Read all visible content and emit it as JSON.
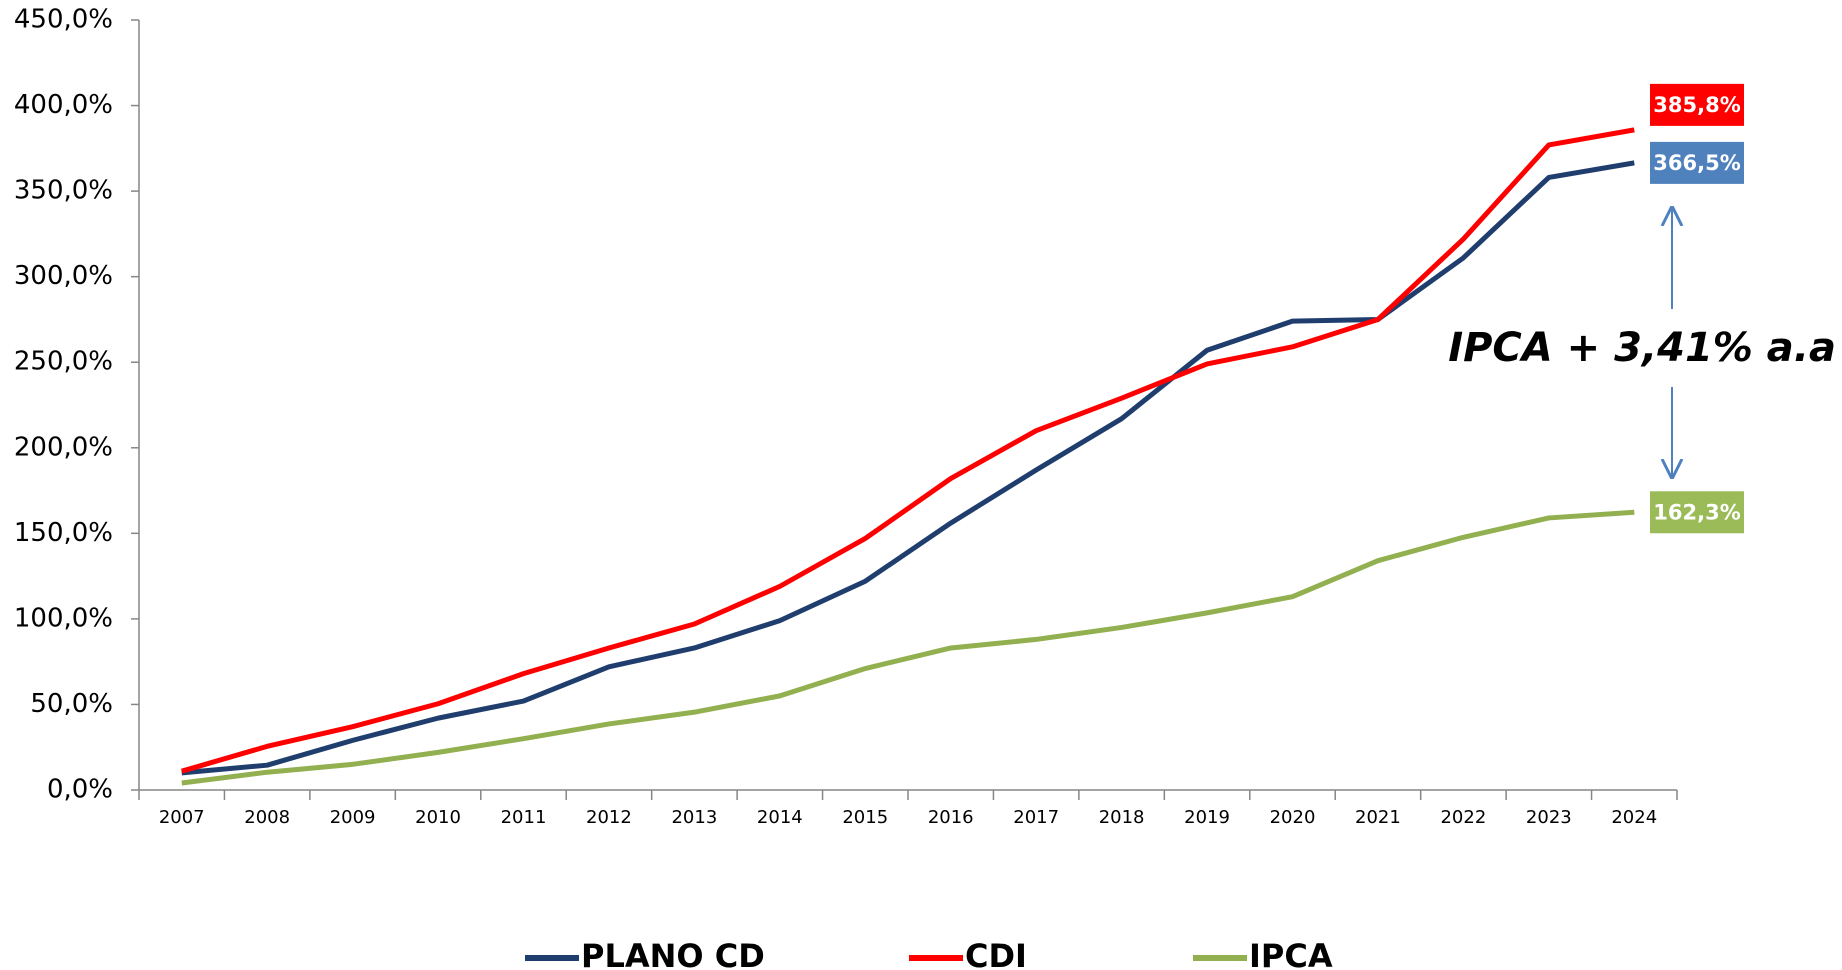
{
  "chart_data": {
    "type": "line",
    "categories": [
      "2007",
      "2008",
      "2009",
      "2010",
      "2011",
      "2012",
      "2013",
      "2014",
      "2015",
      "2016",
      "2017",
      "2018",
      "2019",
      "2020",
      "2021",
      "2022",
      "2023",
      "2024"
    ],
    "series": [
      {
        "name": "PLANO CD",
        "color": "#1f3e6e",
        "label_color": "#4f81bd",
        "values": [
          10,
          14.5,
          29,
          42,
          52,
          72,
          83,
          99,
          122,
          156,
          187,
          217,
          257,
          274,
          275,
          311,
          358,
          366.5
        ],
        "value_labels": [
          null,
          null,
          null,
          null,
          null,
          null,
          null,
          null,
          null,
          null,
          null,
          null,
          null,
          null,
          null,
          null,
          null,
          "366,5%"
        ]
      },
      {
        "name": "CDI",
        "color": "#ff0000",
        "label_color": "#ff0000",
        "values": [
          11,
          25.5,
          37,
          50.4,
          68,
          83,
          97,
          119,
          147,
          182,
          210,
          229,
          249,
          259,
          275,
          322,
          377,
          385.8
        ],
        "value_labels": [
          null,
          null,
          null,
          null,
          null,
          null,
          null,
          null,
          null,
          null,
          null,
          null,
          null,
          null,
          null,
          null,
          null,
          "385,8%"
        ]
      },
      {
        "name": "IPCA",
        "color": "#92b050",
        "label_color": "#9bbb59",
        "values": [
          4.1,
          10.4,
          15,
          22,
          30,
          38.6,
          45.5,
          55,
          71,
          83,
          88,
          95,
          103.5,
          113,
          134,
          147.7,
          159,
          162.3
        ],
        "value_labels": [
          null,
          null,
          null,
          null,
          null,
          null,
          null,
          null,
          null,
          null,
          null,
          null,
          null,
          null,
          null,
          null,
          null,
          "162,3%"
        ]
      }
    ],
    "ylim": [
      0,
      450
    ],
    "yticks": [
      {
        "value": 0,
        "label": "0,0%"
      },
      {
        "value": 50,
        "label": "50,0%"
      },
      {
        "value": 100,
        "label": "100,0%"
      },
      {
        "value": 150,
        "label": "150,0%"
      },
      {
        "value": 200,
        "label": "200,0%"
      },
      {
        "value": 250,
        "label": "250,0%"
      },
      {
        "value": 300,
        "label": "300,0%"
      },
      {
        "value": 350,
        "label": "350,0%"
      },
      {
        "value": 400,
        "label": "400,0%"
      },
      {
        "value": 450,
        "label": "450,0%"
      }
    ],
    "annotation": "IPCA + 3,41% a.a",
    "legend": "bottom"
  }
}
